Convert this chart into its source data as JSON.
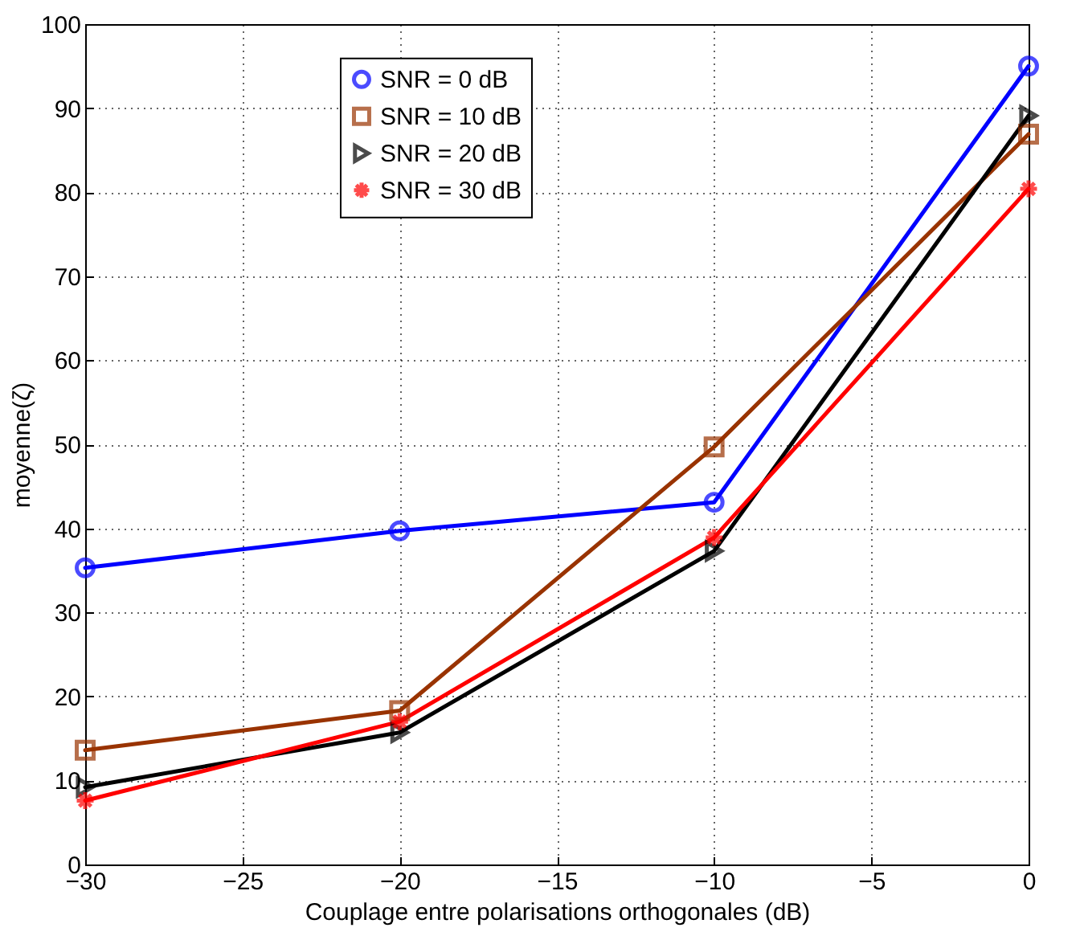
{
  "chart_data": {
    "type": "line",
    "xlabel": "Couplage entre polarisations orthogonales (dB)",
    "ylabel": "moyenne(ζ)",
    "x": [
      -30,
      -20,
      -10,
      0
    ],
    "series": [
      {
        "name": "SNR = 0 dB",
        "color": "#0000ff",
        "marker": "circle",
        "values": [
          35.3,
          39.7,
          43.1,
          95.0
        ]
      },
      {
        "name": "SNR = 10 dB",
        "color": "#993300",
        "marker": "square",
        "values": [
          13.6,
          18.3,
          49.7,
          86.9
        ]
      },
      {
        "name": "SNR = 20 dB",
        "color": "#000000",
        "marker": "triangle",
        "values": [
          9.2,
          15.7,
          37.3,
          89.1
        ]
      },
      {
        "name": "SNR = 30 dB",
        "color": "#ff0000",
        "marker": "cross",
        "values": [
          7.6,
          17.0,
          38.9,
          80.4
        ]
      }
    ],
    "xlim": [
      -30,
      0
    ],
    "xticks": [
      -30,
      -25,
      -20,
      -15,
      -10,
      -5,
      0
    ],
    "ylim": [
      0,
      100
    ],
    "yticks": [
      0,
      10,
      20,
      30,
      40,
      50,
      60,
      70,
      80,
      90,
      100
    ],
    "grid": true,
    "legend": "top left",
    "line_style": "solid"
  }
}
